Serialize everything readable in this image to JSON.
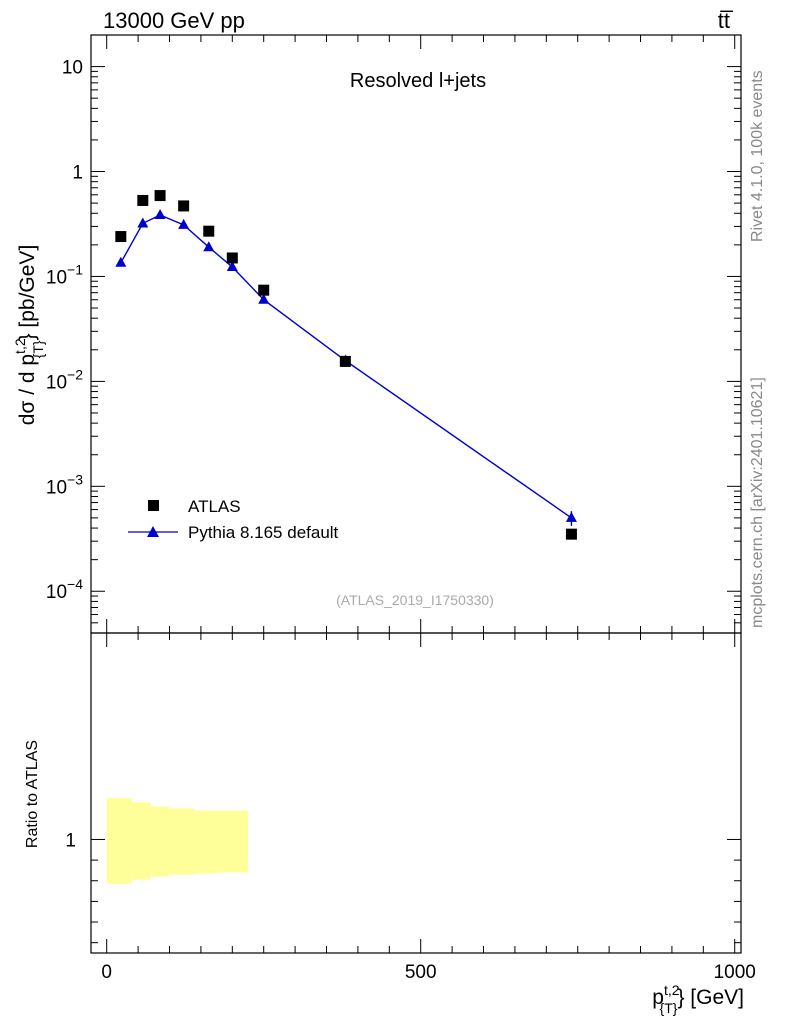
{
  "header": {
    "left": "13000 GeV pp",
    "right": "tt̅"
  },
  "side_labels": {
    "rivet": "Rivet 4.1.0,  100k events",
    "mcplots": "mcplots.cern.ch [arXiv:2401.10621]"
  },
  "chart_data": [
    {
      "type": "scatter",
      "title": "Resolved l+jets",
      "watermark": "(ATLAS_2019_I1750330)",
      "ylabel": {
        "main": "dσ / d p",
        "sup": "t,2",
        "sub": "{T}",
        "tail": "} [pb/GeV]"
      },
      "yscale": "log",
      "xlim": [
        -25,
        1010
      ],
      "ylim": [
        4e-05,
        20
      ],
      "y_ticks": [
        {
          "value": 0.0001,
          "base": "10",
          "exp": "−4"
        },
        {
          "value": 0.001,
          "base": "10",
          "exp": "−3"
        },
        {
          "value": 0.01,
          "base": "10",
          "exp": "−2"
        },
        {
          "value": 0.1,
          "base": "10",
          "exp": "−1"
        },
        {
          "value": 1,
          "base": "1",
          "exp": ""
        },
        {
          "value": 10,
          "base": "10",
          "exp": ""
        }
      ],
      "legend_position": "bottom-left",
      "series": [
        {
          "name": "ATLAS",
          "marker": "square",
          "color": "#000000",
          "x": [
            22.5,
            57.5,
            85,
            122.5,
            162.5,
            200,
            250,
            380,
            740
          ],
          "y": [
            0.24,
            0.53,
            0.59,
            0.47,
            0.27,
            0.15,
            0.074,
            0.0155,
            0.00035
          ]
        },
        {
          "name": "Pythia 8.165 default",
          "marker": "triangle",
          "color": "#0000cc",
          "x": [
            22.5,
            57.5,
            85,
            122.5,
            162.5,
            200,
            250,
            380,
            740
          ],
          "y": [
            0.135,
            0.32,
            0.385,
            0.31,
            0.19,
            0.123,
            0.06,
            0.0158,
            0.0005
          ],
          "y_err": [
            0.003,
            0.006,
            0.007,
            0.006,
            0.004,
            0.003,
            0.002,
            0.0005,
            8e-05
          ]
        }
      ]
    },
    {
      "type": "area",
      "ylabel": "Ratio to ATLAS",
      "xlabel": {
        "main": "p",
        "sup": "t,2",
        "sub": "{T}",
        "tail": "} [GeV]"
      },
      "xlim": [
        -25,
        1010
      ],
      "ylim": [
        0.45,
        2.0
      ],
      "y_ticks": [
        {
          "value": 1,
          "label": "1"
        }
      ],
      "x_ticks": [
        {
          "value": 0,
          "label": "0"
        },
        {
          "value": 500,
          "label": "500"
        },
        {
          "value": 1000,
          "label": "1000"
        }
      ],
      "band": {
        "color": "#ffff99",
        "bins": [
          {
            "x0": 0,
            "x1": 40,
            "lo": 0.785,
            "hi": 1.2
          },
          {
            "x0": 40,
            "x1": 70,
            "lo": 0.805,
            "hi": 1.18
          },
          {
            "x0": 70,
            "x1": 100,
            "lo": 0.82,
            "hi": 1.16
          },
          {
            "x0": 100,
            "x1": 140,
            "lo": 0.83,
            "hi": 1.15
          },
          {
            "x0": 140,
            "x1": 175,
            "lo": 0.835,
            "hi": 1.14
          },
          {
            "x0": 175,
            "x1": 225,
            "lo": 0.84,
            "hi": 1.14
          }
        ]
      }
    }
  ]
}
